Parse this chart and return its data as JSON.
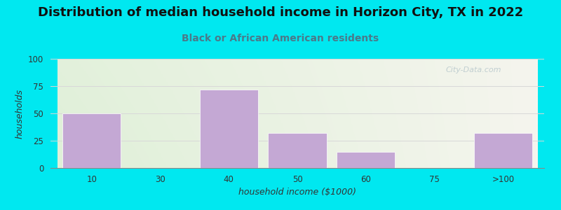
{
  "title": "Distribution of median household income in Horizon City, TX in 2022",
  "subtitle": "Black or African American residents",
  "xlabel": "household income ($1000)",
  "ylabel": "households",
  "categories": [
    "10",
    "30",
    "40",
    "50",
    "60",
    "75",
    ">100"
  ],
  "values": [
    50,
    0,
    72,
    32,
    15,
    0,
    32
  ],
  "bar_color": "#c4a8d4",
  "bar_edgecolor": "#ffffff",
  "ylim": [
    0,
    100
  ],
  "yticks": [
    0,
    25,
    50,
    75,
    100
  ],
  "background_outer": "#00e8f0",
  "bg_color_left": "#dff0d8",
  "bg_color_right": "#f5f5ee",
  "bg_color_top": "#f5f5ee",
  "bg_color_bottom": "#dff0d8",
  "title_fontsize": 13,
  "subtitle_fontsize": 10,
  "axis_label_fontsize": 9,
  "tick_fontsize": 8.5,
  "watermark_text": "City-Data.com",
  "watermark_color": "#b8c8cc",
  "subtitle_color": "#4a7a8a",
  "grid_color": "#d8d8d8"
}
